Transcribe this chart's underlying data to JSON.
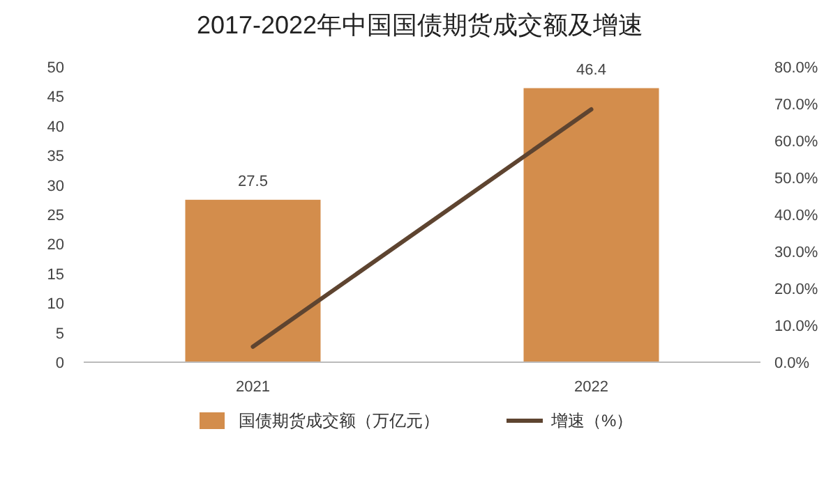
{
  "chart_data": {
    "type": "bar",
    "title": "2017-2022年中国国债期货成交额及增速",
    "categories": [
      "2021",
      "2022"
    ],
    "series": [
      {
        "name": "国债期货成交额（万亿元）",
        "color": "#d38d4c",
        "values": [
          27.5,
          46.4
        ],
        "value_labels": [
          "27.5",
          "46.4"
        ]
      },
      {
        "name": "增速（%）",
        "type": "line",
        "axis": "y2",
        "color": "#5e4430",
        "values": [
          4.2,
          68.5
        ]
      }
    ],
    "ylim": [
      0,
      50
    ],
    "yticks": [
      0,
      5,
      10,
      15,
      20,
      25,
      30,
      35,
      40,
      45,
      50
    ],
    "y2lim": [
      0,
      80
    ],
    "y2ticks": [
      {
        "value": 0,
        "label": "0.0%"
      },
      {
        "value": 10,
        "label": "10.0%"
      },
      {
        "value": 20,
        "label": "20.0%"
      },
      {
        "value": 30,
        "label": "30.0%"
      },
      {
        "value": 40,
        "label": "40.0%"
      },
      {
        "value": 50,
        "label": "50.0%"
      },
      {
        "value": 60,
        "label": "60.0%"
      },
      {
        "value": 70,
        "label": "70.0%"
      },
      {
        "value": 80,
        "label": "80.0%"
      }
    ],
    "legend": "bottom",
    "marker": "none",
    "line_style": "solid"
  }
}
